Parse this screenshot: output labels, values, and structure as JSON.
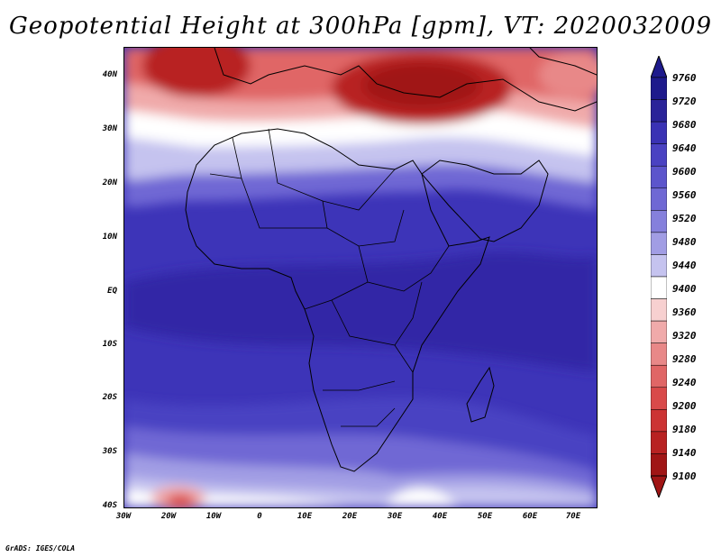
{
  "title": "Geopotential Height at 300hPa [gpm], VT: 2020032009",
  "footer": "GrADS: IGES/COLA",
  "lat_labels": [
    "40N",
    "30N",
    "20N",
    "10N",
    "EQ",
    "10S",
    "20S",
    "30S",
    "40S"
  ],
  "lon_labels": [
    "30W",
    "20W",
    "10W",
    "0",
    "10E",
    "20E",
    "30E",
    "40E",
    "50E",
    "60E",
    "70E"
  ],
  "colorbar": {
    "levels": [
      9760,
      9720,
      9680,
      9640,
      9600,
      9560,
      9520,
      9480,
      9440,
      9400,
      9360,
      9320,
      9280,
      9240,
      9200,
      9180,
      9140,
      9100
    ],
    "colors": [
      "#1e1a8c",
      "#2a2399",
      "#3a32b4",
      "#4a42c2",
      "#5c55cc",
      "#6f68d4",
      "#8580dc",
      "#a19de4",
      "#c5c3ef",
      "#ffffff",
      "#f7d0d0",
      "#f0aaaa",
      "#e88888",
      "#e06666",
      "#d94a4a",
      "#cc3333",
      "#b82222",
      "#a01515"
    ]
  }
}
